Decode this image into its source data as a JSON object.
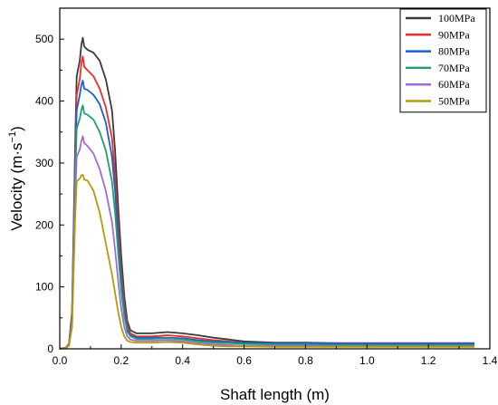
{
  "chart_data": {
    "type": "line",
    "xlabel": "Shaft length (m)",
    "ylabel_prefix": "Velocity (m·s",
    "ylabel_sup": "−1",
    "ylabel_suffix": ")",
    "xlim": [
      0.0,
      1.4
    ],
    "ylim": [
      0,
      550
    ],
    "xticks": [
      0.0,
      0.2,
      0.4,
      0.6,
      0.8,
      1.0,
      1.2,
      1.4
    ],
    "xtick_labels": [
      "0.0",
      "0.2",
      "0.4",
      "0.6",
      "0.8",
      "1.0",
      "1.2",
      "1.4"
    ],
    "yticks": [
      0,
      100,
      200,
      300,
      400,
      500
    ],
    "ytick_labels": [
      "0",
      "100",
      "200",
      "300",
      "400",
      "500"
    ],
    "grid": false,
    "legend_position": "top-right",
    "series": [
      {
        "name": "100MPa",
        "color": "#3a3a3a",
        "points": [
          [
            0.0,
            0
          ],
          [
            0.02,
            2
          ],
          [
            0.03,
            8
          ],
          [
            0.04,
            60
          ],
          [
            0.05,
            330
          ],
          [
            0.055,
            440
          ],
          [
            0.065,
            465
          ],
          [
            0.07,
            490
          ],
          [
            0.075,
            502
          ],
          [
            0.08,
            488
          ],
          [
            0.09,
            483
          ],
          [
            0.11,
            478
          ],
          [
            0.13,
            465
          ],
          [
            0.15,
            435
          ],
          [
            0.17,
            385
          ],
          [
            0.18,
            320
          ],
          [
            0.19,
            230
          ],
          [
            0.2,
            150
          ],
          [
            0.21,
            85
          ],
          [
            0.22,
            45
          ],
          [
            0.23,
            30
          ],
          [
            0.25,
            25
          ],
          [
            0.3,
            25
          ],
          [
            0.35,
            27
          ],
          [
            0.4,
            25
          ],
          [
            0.45,
            22
          ],
          [
            0.5,
            18
          ],
          [
            0.55,
            15
          ],
          [
            0.6,
            12
          ],
          [
            0.7,
            10
          ],
          [
            0.8,
            10
          ],
          [
            0.9,
            9
          ],
          [
            1.0,
            9
          ],
          [
            1.1,
            9
          ],
          [
            1.2,
            9
          ],
          [
            1.35,
            9
          ]
        ]
      },
      {
        "name": "90MPa",
        "color": "#ef2b2b",
        "points": [
          [
            0.0,
            0
          ],
          [
            0.02,
            2
          ],
          [
            0.03,
            8
          ],
          [
            0.04,
            55
          ],
          [
            0.05,
            310
          ],
          [
            0.055,
            410
          ],
          [
            0.065,
            435
          ],
          [
            0.07,
            460
          ],
          [
            0.075,
            472
          ],
          [
            0.08,
            455
          ],
          [
            0.09,
            450
          ],
          [
            0.11,
            440
          ],
          [
            0.13,
            420
          ],
          [
            0.15,
            390
          ],
          [
            0.17,
            340
          ],
          [
            0.18,
            280
          ],
          [
            0.19,
            200
          ],
          [
            0.2,
            125
          ],
          [
            0.21,
            70
          ],
          [
            0.22,
            38
          ],
          [
            0.23,
            25
          ],
          [
            0.25,
            20
          ],
          [
            0.3,
            20
          ],
          [
            0.35,
            22
          ],
          [
            0.4,
            20
          ],
          [
            0.45,
            17
          ],
          [
            0.5,
            14
          ],
          [
            0.55,
            12
          ],
          [
            0.6,
            10
          ],
          [
            0.7,
            9
          ],
          [
            0.8,
            9
          ],
          [
            0.9,
            8
          ],
          [
            1.0,
            8
          ],
          [
            1.1,
            8
          ],
          [
            1.2,
            8
          ],
          [
            1.35,
            8
          ]
        ]
      },
      {
        "name": "80MPa",
        "color": "#1d5ec9",
        "points": [
          [
            0.0,
            0
          ],
          [
            0.02,
            2
          ],
          [
            0.03,
            7
          ],
          [
            0.04,
            50
          ],
          [
            0.05,
            290
          ],
          [
            0.055,
            385
          ],
          [
            0.065,
            410
          ],
          [
            0.07,
            425
          ],
          [
            0.075,
            433
          ],
          [
            0.08,
            420
          ],
          [
            0.09,
            418
          ],
          [
            0.11,
            410
          ],
          [
            0.13,
            395
          ],
          [
            0.15,
            365
          ],
          [
            0.17,
            310
          ],
          [
            0.18,
            255
          ],
          [
            0.19,
            180
          ],
          [
            0.2,
            110
          ],
          [
            0.21,
            60
          ],
          [
            0.22,
            32
          ],
          [
            0.23,
            22
          ],
          [
            0.25,
            18
          ],
          [
            0.3,
            18
          ],
          [
            0.35,
            18
          ],
          [
            0.4,
            17
          ],
          [
            0.45,
            14
          ],
          [
            0.5,
            12
          ],
          [
            0.55,
            11
          ],
          [
            0.6,
            10
          ],
          [
            0.7,
            9
          ],
          [
            0.8,
            9
          ],
          [
            0.9,
            9
          ],
          [
            1.0,
            9
          ],
          [
            1.1,
            9
          ],
          [
            1.2,
            9
          ],
          [
            1.35,
            9
          ]
        ]
      },
      {
        "name": "70MPa",
        "color": "#22a06b",
        "points": [
          [
            0.0,
            0
          ],
          [
            0.02,
            2
          ],
          [
            0.03,
            6
          ],
          [
            0.04,
            45
          ],
          [
            0.05,
            270
          ],
          [
            0.055,
            355
          ],
          [
            0.065,
            372
          ],
          [
            0.07,
            385
          ],
          [
            0.075,
            393
          ],
          [
            0.08,
            380
          ],
          [
            0.09,
            378
          ],
          [
            0.11,
            370
          ],
          [
            0.13,
            350
          ],
          [
            0.15,
            320
          ],
          [
            0.17,
            270
          ],
          [
            0.18,
            220
          ],
          [
            0.19,
            155
          ],
          [
            0.2,
            95
          ],
          [
            0.21,
            52
          ],
          [
            0.22,
            28
          ],
          [
            0.23,
            20
          ],
          [
            0.25,
            16
          ],
          [
            0.3,
            16
          ],
          [
            0.35,
            17
          ],
          [
            0.4,
            15
          ],
          [
            0.45,
            12
          ],
          [
            0.5,
            10
          ],
          [
            0.55,
            9
          ],
          [
            0.6,
            8
          ],
          [
            0.7,
            7
          ],
          [
            0.8,
            7
          ],
          [
            0.9,
            6
          ],
          [
            1.0,
            6
          ],
          [
            1.1,
            6
          ],
          [
            1.2,
            6
          ],
          [
            1.35,
            6
          ]
        ]
      },
      {
        "name": "60MPa",
        "color": "#a469d8",
        "points": [
          [
            0.0,
            0
          ],
          [
            0.02,
            2
          ],
          [
            0.03,
            6
          ],
          [
            0.04,
            40
          ],
          [
            0.05,
            240
          ],
          [
            0.055,
            310
          ],
          [
            0.065,
            322
          ],
          [
            0.07,
            335
          ],
          [
            0.075,
            343
          ],
          [
            0.08,
            332
          ],
          [
            0.09,
            328
          ],
          [
            0.11,
            315
          ],
          [
            0.13,
            290
          ],
          [
            0.15,
            255
          ],
          [
            0.17,
            205
          ],
          [
            0.18,
            160
          ],
          [
            0.19,
            110
          ],
          [
            0.2,
            65
          ],
          [
            0.21,
            35
          ],
          [
            0.22,
            20
          ],
          [
            0.23,
            15
          ],
          [
            0.25,
            13
          ],
          [
            0.3,
            13
          ],
          [
            0.35,
            14
          ],
          [
            0.4,
            12
          ],
          [
            0.45,
            9
          ],
          [
            0.5,
            7
          ],
          [
            0.55,
            6
          ],
          [
            0.6,
            5
          ],
          [
            0.7,
            5
          ],
          [
            0.8,
            5
          ],
          [
            0.9,
            4
          ],
          [
            1.0,
            4
          ],
          [
            1.1,
            4
          ],
          [
            1.2,
            4
          ],
          [
            1.35,
            4
          ]
        ]
      },
      {
        "name": "50MPa",
        "color": "#b59a0c",
        "points": [
          [
            0.0,
            0
          ],
          [
            0.02,
            1
          ],
          [
            0.03,
            5
          ],
          [
            0.04,
            35
          ],
          [
            0.05,
            210
          ],
          [
            0.055,
            270
          ],
          [
            0.065,
            275
          ],
          [
            0.07,
            280
          ],
          [
            0.075,
            281
          ],
          [
            0.08,
            273
          ],
          [
            0.09,
            272
          ],
          [
            0.11,
            255
          ],
          [
            0.13,
            220
          ],
          [
            0.15,
            170
          ],
          [
            0.17,
            120
          ],
          [
            0.18,
            90
          ],
          [
            0.19,
            60
          ],
          [
            0.2,
            35
          ],
          [
            0.21,
            20
          ],
          [
            0.22,
            13
          ],
          [
            0.23,
            11
          ],
          [
            0.25,
            10
          ],
          [
            0.3,
            10
          ],
          [
            0.35,
            11
          ],
          [
            0.4,
            10
          ],
          [
            0.45,
            7
          ],
          [
            0.5,
            5
          ],
          [
            0.55,
            4
          ],
          [
            0.6,
            4
          ],
          [
            0.7,
            3
          ],
          [
            0.8,
            3
          ],
          [
            0.9,
            3
          ],
          [
            1.0,
            3
          ],
          [
            1.1,
            3
          ],
          [
            1.2,
            3
          ],
          [
            1.35,
            3
          ]
        ]
      }
    ]
  }
}
